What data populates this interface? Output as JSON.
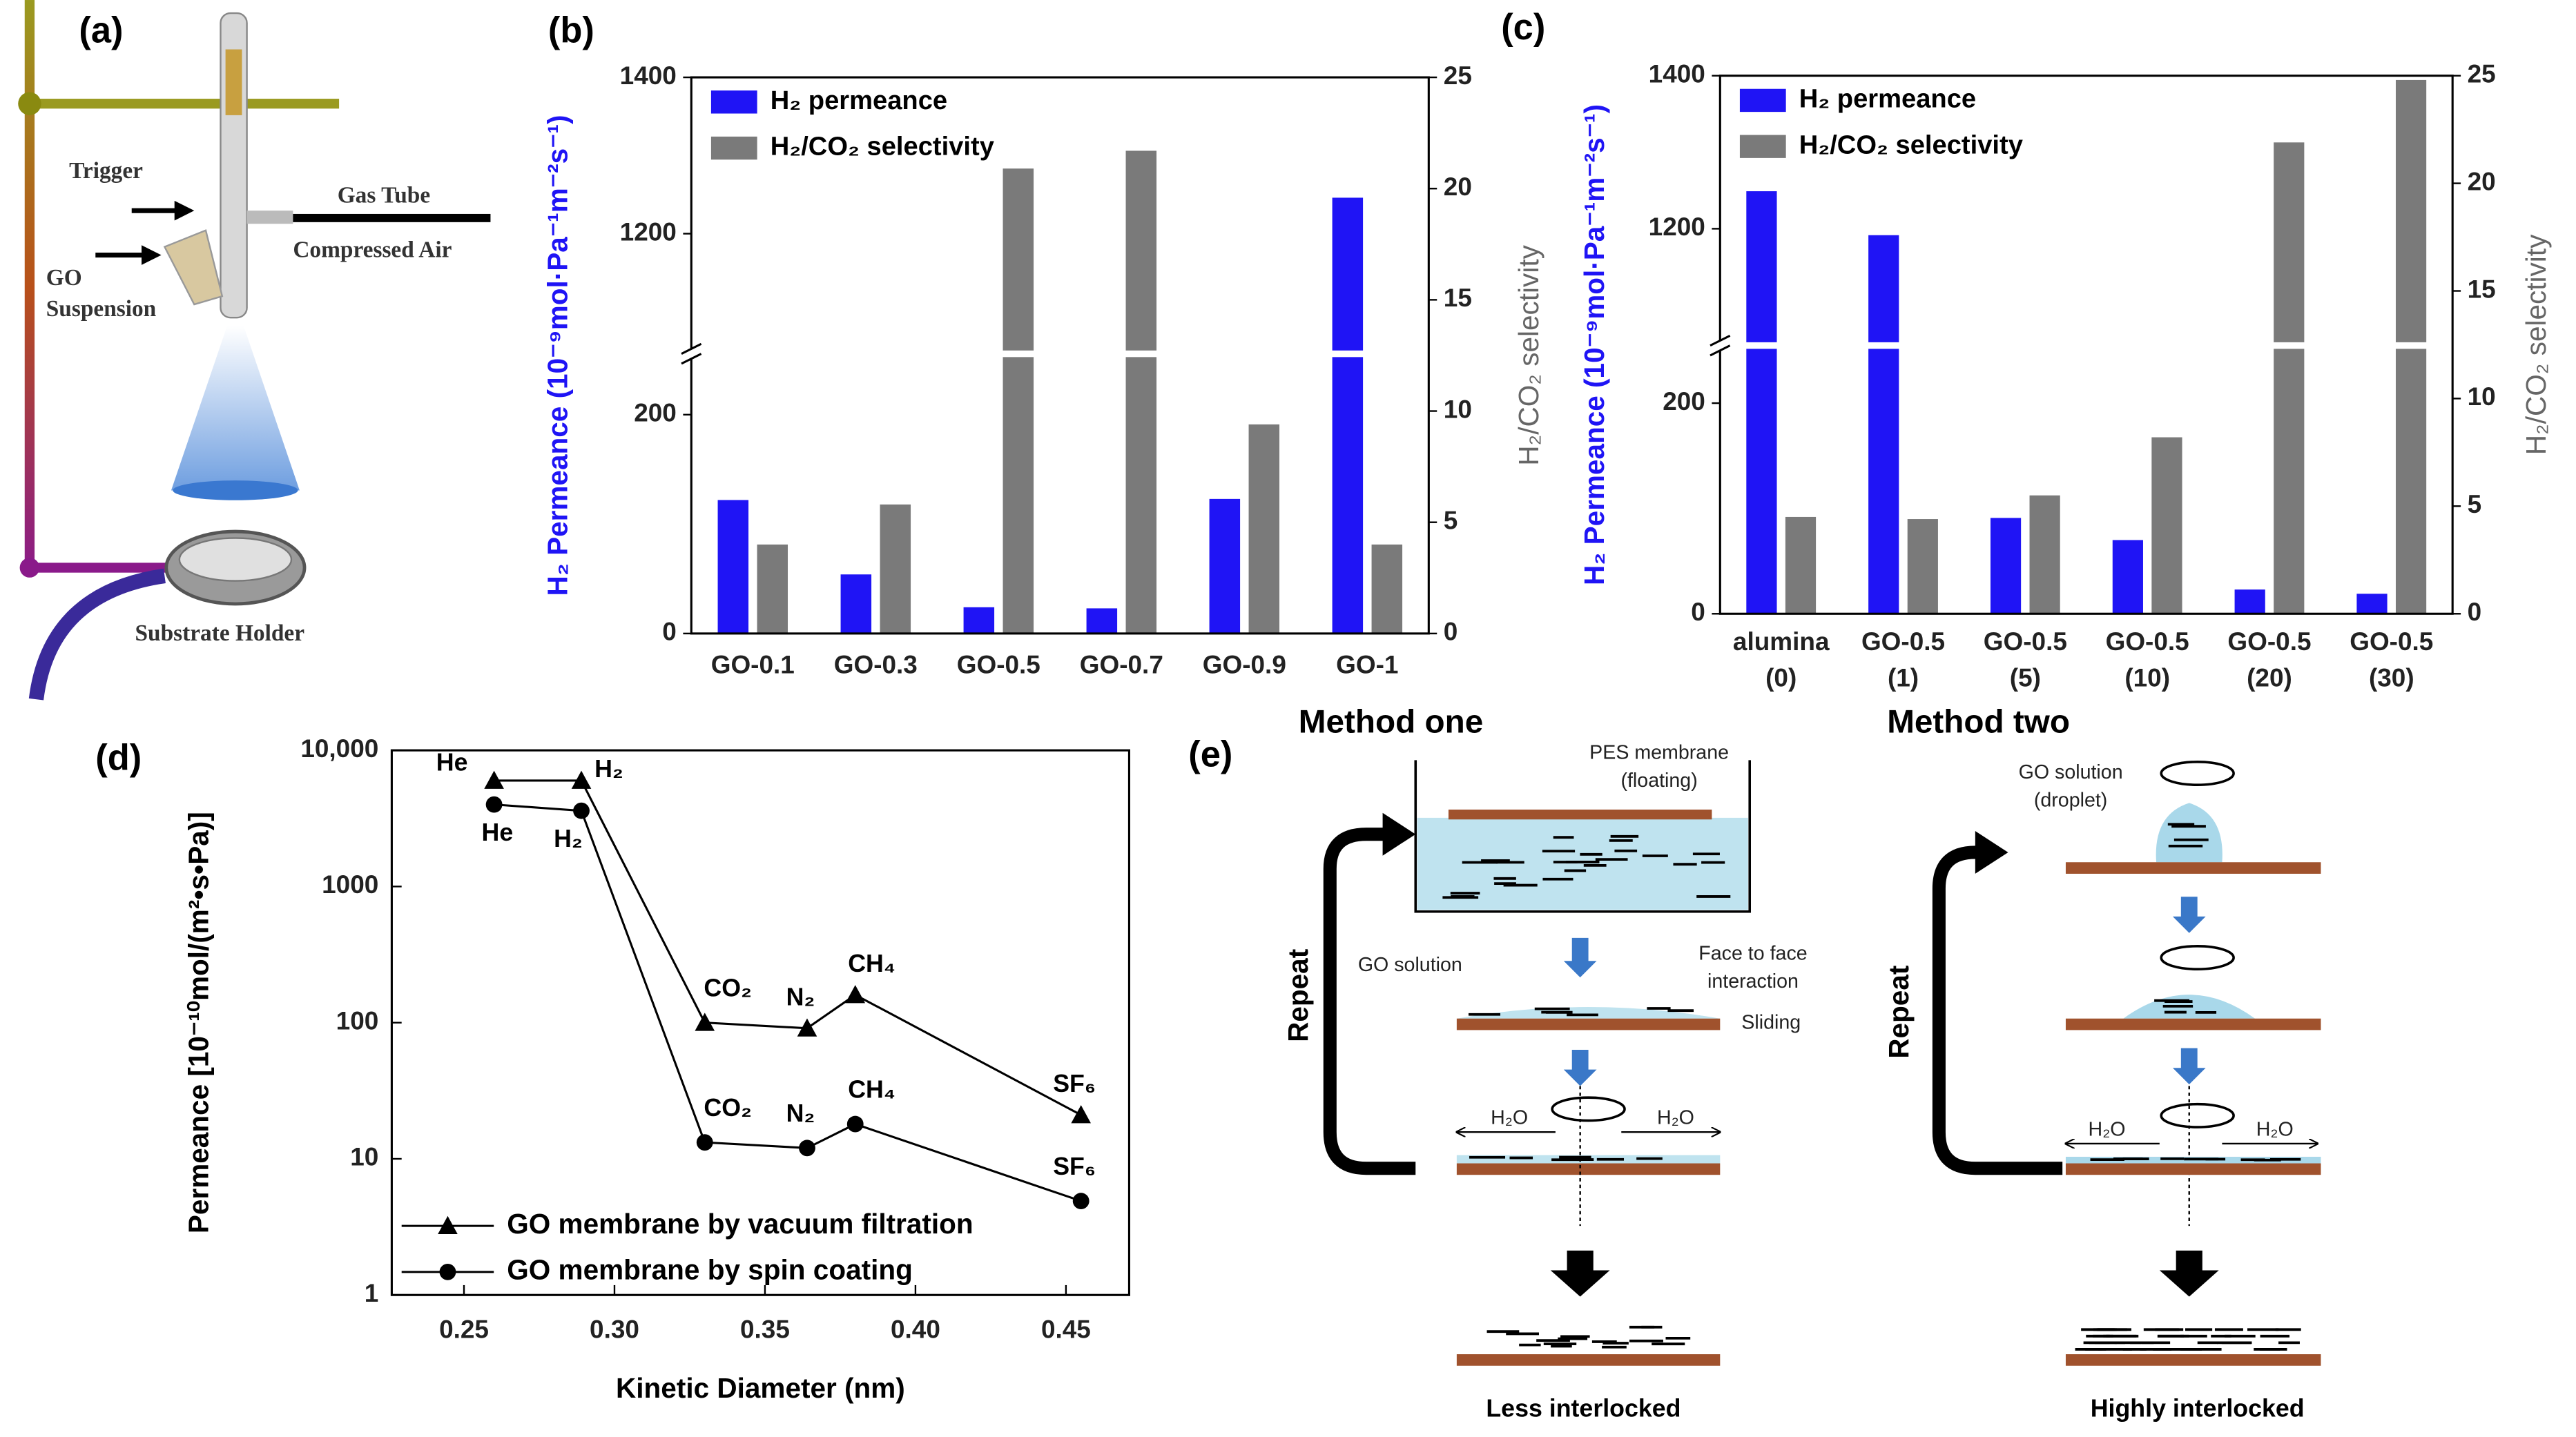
{
  "panel_labels": [
    "(a)",
    "(b)",
    "(c)",
    "(d)",
    "(e)"
  ],
  "figure_a": {
    "trigger": "Trigger",
    "suspension": [
      "GO",
      "Suspension"
    ],
    "gas_tube": "Gas Tube",
    "compressed_air": "Compressed Air",
    "substrate_holder": "Substrate Holder"
  },
  "chart_data": [
    {
      "type": "bar",
      "categories": [
        "GO-0.1",
        "GO-0.3",
        "GO-0.5",
        "GO-0.7",
        "GO-0.9",
        "GO-1"
      ],
      "series": [
        {
          "name": "H₂ permeance",
          "color": "#1f14f5",
          "values": [
            122,
            54,
            24,
            23,
            123,
            1246
          ]
        },
        {
          "name": "H₂/CO₂ selectivity",
          "color": "#7a7a7a",
          "values": [
            4.0,
            5.8,
            20.9,
            21.7,
            9.4,
            4.0
          ],
          "axis": "y2"
        }
      ],
      "ylabel": "H₂ Permeance (10⁻⁹mol·Pa⁻¹m⁻²s⁻¹)",
      "y2label": "H₂/CO₂ selectivity",
      "ylim": [
        0,
        1400
      ],
      "yticks": [
        0,
        200,
        1200,
        1400
      ],
      "axis_break": [
        200,
        1200
      ],
      "y2lim": [
        0,
        25
      ],
      "y2ticks": [
        0,
        5,
        10,
        15,
        20,
        25
      ],
      "legend": "upper left"
    },
    {
      "type": "bar",
      "categories": [
        [
          "alumina",
          "(0)"
        ],
        [
          "GO-0.5",
          "(1)"
        ],
        [
          "GO-0.5",
          "(5)"
        ],
        [
          "GO-0.5",
          "(10)"
        ],
        [
          "GO-0.5",
          "(20)"
        ],
        [
          "GO-0.5",
          "(30)"
        ]
      ],
      "series": [
        {
          "name": "H₂ permeance",
          "color": "#1f14f5",
          "values": [
            1249,
            1163,
            91,
            70,
            23,
            19
          ]
        },
        {
          "name": "H₂/CO₂ selectivity",
          "color": "#7a7a7a",
          "values": [
            4.5,
            4.4,
            5.5,
            8.2,
            21.9,
            24.8
          ],
          "axis": "y2"
        }
      ],
      "ylabel": "H₂ Permeance (10⁻⁹mol·Pa⁻¹m⁻²s⁻¹)",
      "y2label": "H₂/CO₂ selectivity",
      "ylim": [
        0,
        1400
      ],
      "yticks": [
        0,
        200,
        1200,
        1400
      ],
      "axis_break": [
        200,
        1200
      ],
      "y2lim": [
        0,
        25
      ],
      "y2ticks": [
        0,
        5,
        10,
        15,
        20,
        25
      ],
      "legend": "upper left"
    },
    {
      "type": "line",
      "x": [
        0.26,
        0.289,
        0.33,
        0.364,
        0.38,
        0.455
      ],
      "series": [
        {
          "name": "GO membrane by vacuum filtration",
          "color": "#000000",
          "marker": "triangle",
          "values": [
            6000,
            6000,
            100,
            91,
            160,
            21
          ],
          "point_labels": [
            "He",
            "H₂",
            "CO₂",
            "N₂",
            "CH₄",
            "SF₆"
          ]
        },
        {
          "name": "GO membrane by spin coating",
          "color": "#000000",
          "marker": "circle",
          "values": [
            4000,
            3600,
            13.2,
            12,
            18,
            4.9
          ],
          "point_labels": [
            "He",
            "H₂",
            "CO₂",
            "N₂",
            "CH₄",
            "SF₆"
          ]
        }
      ],
      "xlabel": "Kinetic Diameter (nm)",
      "ylabel": "Permeance [10⁻¹⁰mol/(m²•s•Pa)]",
      "xlim": [
        0.226,
        0.471
      ],
      "xticks": [
        0.25,
        {
          "value": 0.3,
          "label": "0.30"
        },
        0.35,
        {
          "value": 0.4,
          "label": "0.40"
        },
        0.45
      ],
      "ylim": [
        1,
        10000
      ],
      "yticks": [
        1,
        10,
        100,
        1000,
        {
          "value": 10000,
          "label": "10,000"
        }
      ],
      "log_y": true,
      "legend": "lower left"
    }
  ],
  "figure_e": {
    "method_one": "Method one",
    "method_two": "Method two",
    "pes": [
      "PES membrane",
      "(floating)"
    ],
    "go_solution": "GO solution",
    "face": [
      "Face to face",
      "interaction"
    ],
    "sliding": "Sliding",
    "water": "H₂O",
    "repeat": "Repeat",
    "less": "Less interlocked",
    "go_droplet": [
      "GO solution",
      "(droplet)"
    ],
    "highly": "Highly interlocked"
  }
}
